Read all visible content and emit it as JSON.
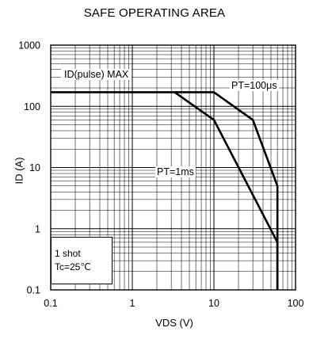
{
  "chart_data": {
    "type": "line",
    "title": "SAFE OPERATING AREA",
    "xlabel": "VDS  (V)",
    "ylabel": "ID  (A)",
    "x_scale": "log",
    "y_scale": "log",
    "xlim": [
      0.1,
      100
    ],
    "ylim": [
      0.1,
      1000
    ],
    "grid": true,
    "x_ticks": [
      "0.1",
      "1",
      "10",
      "100"
    ],
    "y_ticks": [
      "1000",
      "100",
      "10",
      "1",
      "0.1"
    ],
    "series": [
      {
        "name": "ID(pulse)  MAX",
        "x": [
          0.1,
          10
        ],
        "y": [
          170,
          170
        ]
      },
      {
        "name": "PT=100μs",
        "x": [
          10,
          30,
          60,
          60
        ],
        "y": [
          170,
          60,
          5,
          0.1
        ]
      },
      {
        "name": "PT=1ms",
        "x": [
          3.3,
          10,
          60,
          60
        ],
        "y": [
          170,
          60,
          0.6,
          0.1
        ]
      }
    ],
    "annotations": {
      "note_line1": "1 shot",
      "note_line2": "Tc=25℃"
    }
  }
}
